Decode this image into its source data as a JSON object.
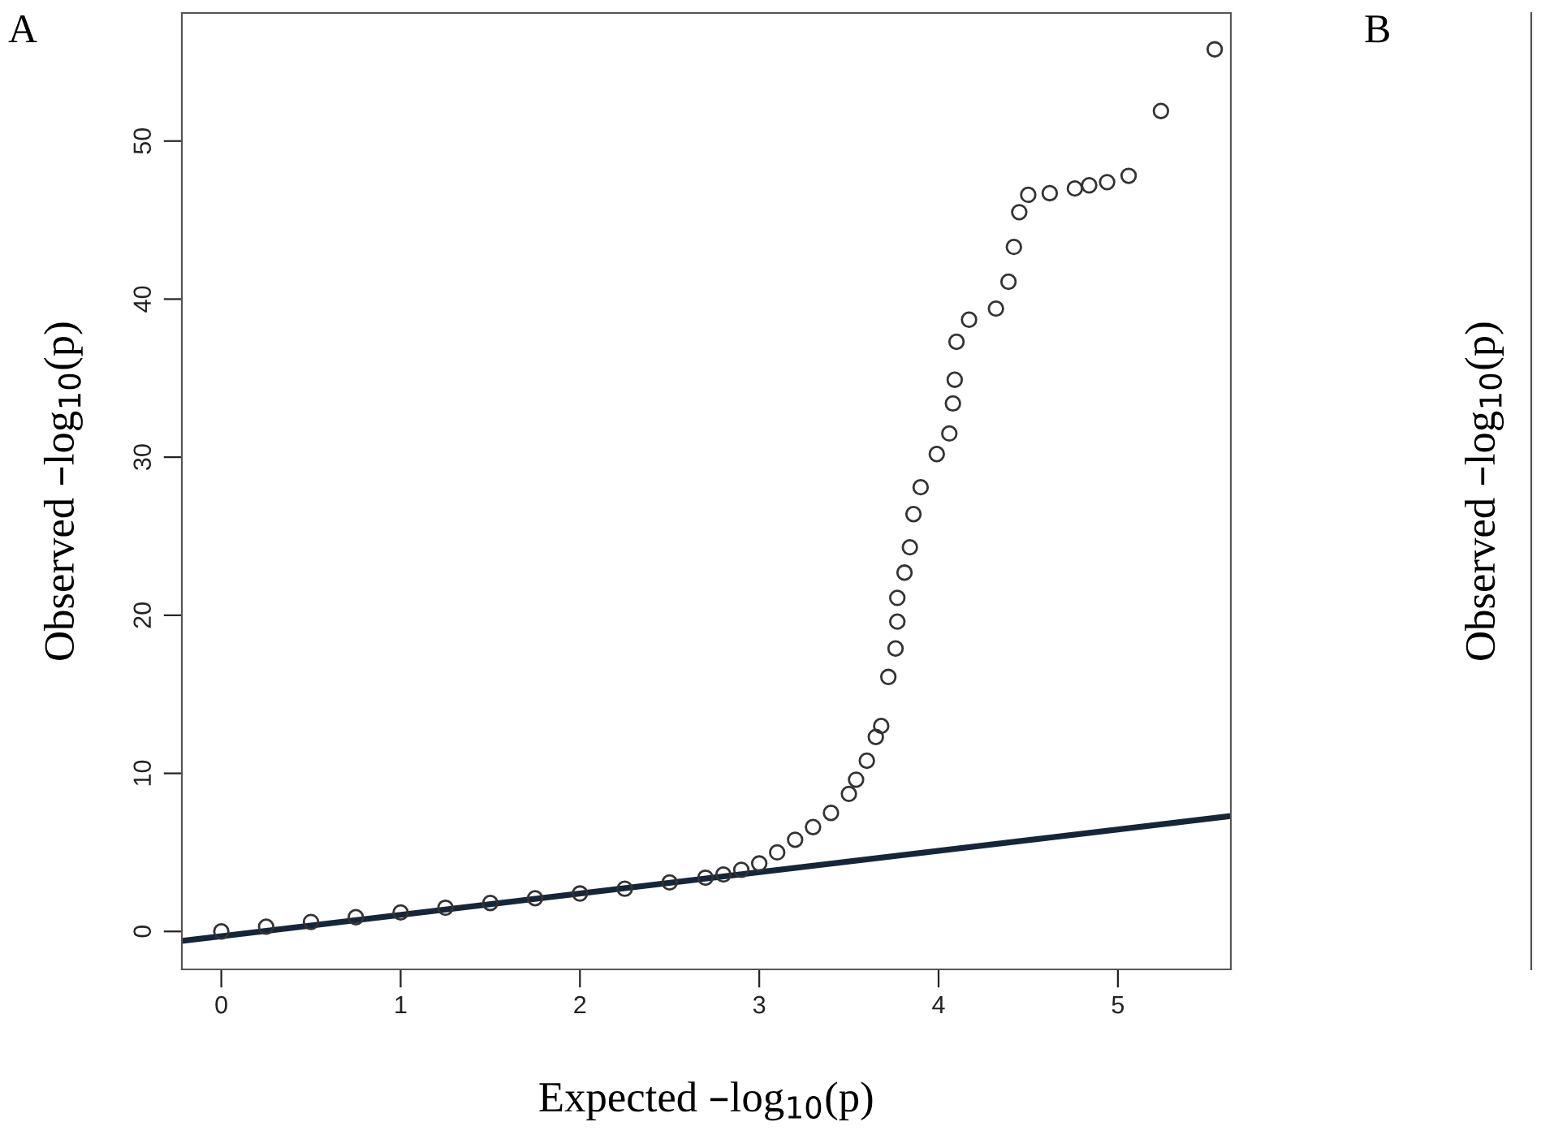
{
  "chart_data": [
    {
      "type": "scatter",
      "title": "A",
      "xlabel": "Expected –log$_{10}$(p)",
      "ylabel": "Observed –log$_{10}$(p)",
      "xlim": [
        -0.22,
        5.63
      ],
      "ylim": [
        -2.4,
        58.1
      ],
      "xticks": [
        0,
        1,
        2,
        3,
        4,
        5
      ],
      "yticks": [
        0,
        10,
        20,
        30,
        40,
        50
      ],
      "grid": false,
      "legend": false,
      "series": [
        {
          "marker": "circle",
          "color": "#333333",
          "x": [
            0,
            0.25,
            0.5,
            0.75,
            1,
            1.25,
            1.5,
            1.75,
            2,
            2.25,
            2.5,
            2.7,
            2.8,
            2.9,
            3.0,
            3.1,
            3.2,
            3.3,
            3.4,
            3.5,
            3.54,
            3.6,
            3.65,
            3.68,
            3.72,
            3.76,
            3.77,
            3.77,
            3.81,
            3.84,
            3.86,
            3.9,
            3.99,
            4.06,
            4.08,
            4.09,
            4.1,
            4.17,
            4.32,
            4.39,
            4.42,
            4.45,
            4.5,
            4.62,
            4.76,
            4.84,
            4.94,
            5.06,
            5.24,
            5.54
          ],
          "values": [
            0,
            0.3,
            0.6,
            0.9,
            1.2,
            1.5,
            1.8,
            2.1,
            2.4,
            2.7,
            3.1,
            3.4,
            3.6,
            3.9,
            4.3,
            5.0,
            5.8,
            6.6,
            7.5,
            8.7,
            9.6,
            10.8,
            12.3,
            13.0,
            16.1,
            17.9,
            19.6,
            21.1,
            22.7,
            24.3,
            26.4,
            28.1,
            30.2,
            31.5,
            33.4,
            34.9,
            37.3,
            38.7,
            39.4,
            41.1,
            43.3,
            45.5,
            46.6,
            46.7,
            47.0,
            47.2,
            47.4,
            47.8,
            51.9,
            55.8
          ]
        },
        {
          "type": "line",
          "color": "#15263a",
          "x": [
            -0.22,
            5.63
          ],
          "values": [
            -0.6,
            7.3
          ]
        }
      ]
    },
    {
      "type": "other",
      "title": "B",
      "ylabel": "Observed –log$_{10}$(p)"
    }
  ]
}
